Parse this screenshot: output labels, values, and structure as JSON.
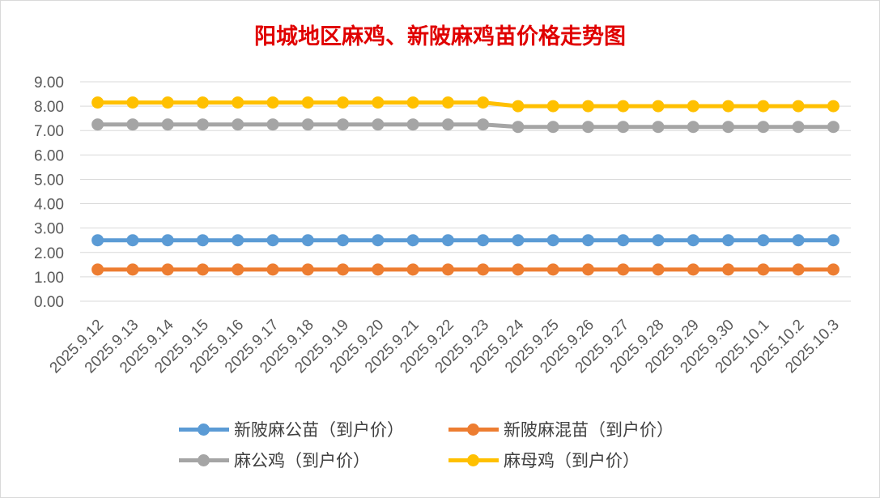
{
  "chart_data": {
    "type": "line",
    "title": "阳城地区麻鸡、新陂麻鸡苗价格走势图",
    "categories": [
      "2025.9.12",
      "2025.9.13",
      "2025.9.14",
      "2025.9.15",
      "2025.9.16",
      "2025.9.17",
      "2025.9.18",
      "2025.9.19",
      "2025.9.20",
      "2025.9.21",
      "2025.9.22",
      "2025.9.23",
      "2025.9.24",
      "2025.9.25",
      "2025.9.26",
      "2025.9.27",
      "2025.9.28",
      "2025.9.29",
      "2025.9.30",
      "2025.10.1",
      "2025.10.2",
      "2025.10.3"
    ],
    "yticks": [
      "0.00",
      "1.00",
      "2.00",
      "3.00",
      "4.00",
      "5.00",
      "6.00",
      "7.00",
      "8.00",
      "9.00"
    ],
    "ylim": [
      0,
      9
    ],
    "grid": true,
    "legend_position": "bottom",
    "series": [
      {
        "name": "新陂麻公苗（到户价）",
        "color": "#5b9bd5",
        "values": [
          2.5,
          2.5,
          2.5,
          2.5,
          2.5,
          2.5,
          2.5,
          2.5,
          2.5,
          2.5,
          2.5,
          2.5,
          2.5,
          2.5,
          2.5,
          2.5,
          2.5,
          2.5,
          2.5,
          2.5,
          2.5,
          2.5
        ]
      },
      {
        "name": "新陂麻混苗（到户价）",
        "color": "#ed7d31",
        "values": [
          1.3,
          1.3,
          1.3,
          1.3,
          1.3,
          1.3,
          1.3,
          1.3,
          1.3,
          1.3,
          1.3,
          1.3,
          1.3,
          1.3,
          1.3,
          1.3,
          1.3,
          1.3,
          1.3,
          1.3,
          1.3,
          1.3
        ]
      },
      {
        "name": "麻公鸡（到户价）",
        "color": "#a5a5a5",
        "values": [
          7.25,
          7.25,
          7.25,
          7.25,
          7.25,
          7.25,
          7.25,
          7.25,
          7.25,
          7.25,
          7.25,
          7.25,
          7.15,
          7.15,
          7.15,
          7.15,
          7.15,
          7.15,
          7.15,
          7.15,
          7.15,
          7.15
        ]
      },
      {
        "name": "麻母鸡（到户价）",
        "color": "#ffc000",
        "values": [
          8.15,
          8.15,
          8.15,
          8.15,
          8.15,
          8.15,
          8.15,
          8.15,
          8.15,
          8.15,
          8.15,
          8.15,
          8.0,
          8.0,
          8.0,
          8.0,
          8.0,
          8.0,
          8.0,
          8.0,
          8.0,
          8.0
        ]
      }
    ]
  }
}
